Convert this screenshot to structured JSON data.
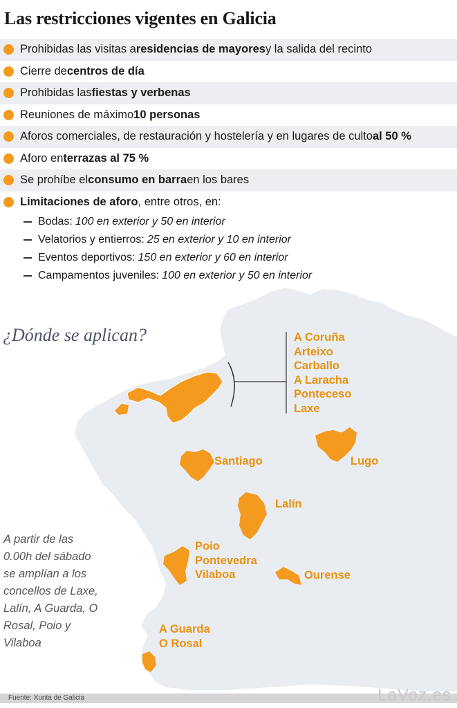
{
  "title": "Las restricciones vigentes en Galicia",
  "restrictions": [
    {
      "pre": "Prohibidas las visitas a ",
      "bold": "residencias de mayores",
      "post": " y la salida del recinto"
    },
    {
      "pre": "Cierre de ",
      "bold": "centros de día",
      "post": ""
    },
    {
      "pre": "Prohibidas las ",
      "bold": "fiestas y verbenas",
      "post": ""
    },
    {
      "pre": "Reuniones de máximo ",
      "bold": "10 personas",
      "post": ""
    },
    {
      "pre": "Aforos comerciales, de restauración y hostelería y en lugares de culto ",
      "bold": "al 50 %",
      "post": ""
    },
    {
      "pre": "Aforo en ",
      "bold": "terrazas al 75 %",
      "post": ""
    },
    {
      "pre": "Se prohíbe el ",
      "bold": "consumo en barra",
      "post": " en los bares"
    },
    {
      "pre": "",
      "bold": "Limitaciones de aforo",
      "post": ", entre otros, en:"
    }
  ],
  "limits": [
    {
      "label": "Bodas:",
      "detail": "100 en exterior y 50 en interior"
    },
    {
      "label": "Velatorios y entierros:",
      "detail": "25 en exterior y 10 en interior"
    },
    {
      "label": "Eventos deportivos:",
      "detail": "150 en exterior y 60 en interior"
    },
    {
      "label": "Campamentos juveniles:",
      "detail": "100 en exterior y 50 en interior"
    }
  ],
  "map": {
    "question": "¿Dónde se aplican?",
    "labels": {
      "coruna_group": [
        "A Coruña",
        "Arteixo",
        "Carballo",
        "A Laracha",
        "Ponteceso",
        "Laxe"
      ],
      "santiago": "Santiago",
      "lugo": "Lugo",
      "lalin": "Lalín",
      "pontevedra_group": [
        "Poio",
        "Pontevedra",
        "Vilaboa"
      ],
      "ourense": "Ourense",
      "guarda_group": [
        "A Guarda",
        "O Rosal"
      ]
    },
    "note": "A partir de las 0.00h del sábado se amplían a los concellos de Laxe, Lalín, A Guarda, O Rosal, Poio y Vilaboa",
    "colors": {
      "region_fill": "#e9edf1",
      "highlight": "#f39a1f",
      "label": "#e8920f"
    }
  },
  "source": "Fuente: Xunta de Galicia",
  "logo": "LaVoz.es"
}
